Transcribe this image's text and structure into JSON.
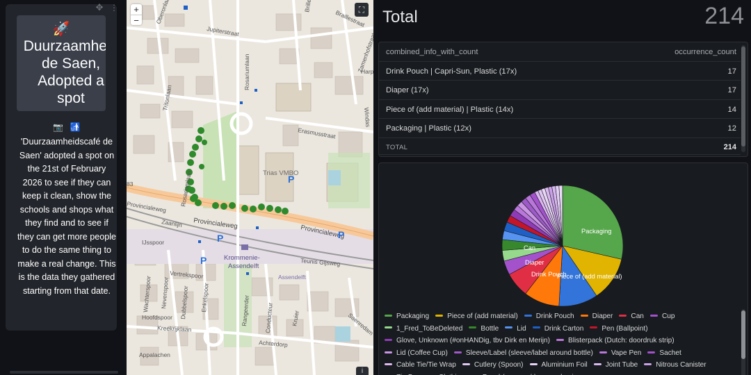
{
  "text_panel": {
    "rocket_emoji": "🚀",
    "title": "Duurzaamheid\nde Saen,\nAdopted a\nspot",
    "icons": [
      "📷",
      "🚮"
    ],
    "body": "'Duurzaamheidscafé de Saen' adopted a spot on the 21st of February 2026 to see if they can keep it clean, show the schools and shops what they find and to see if they can get more people to do the same thing to make a real change. This is the data they gathered starting from that date."
  },
  "map": {
    "zoom_in": "+",
    "zoom_out": "−",
    "fullscreen_icon": "⛶",
    "info_icon": "i",
    "labels": {
      "oberonlaan": "Oberonlaan",
      "jupiterstraat": "Jupiterstraat",
      "brillestraat": "Brillestraat",
      "brailestraat": "Braillestraat",
      "zamenhofstraat": "Zamenhofstraat",
      "tritonlaan": "Tritonlaan",
      "rosariumlaan": "Rosariumlaan",
      "windas": "Windas",
      "harp": "Harp",
      "erasmusstraat": "Erasmusstraat",
      "trias": "Trias VMBO",
      "provincialeweg1": "Provincialeweg",
      "provincialeweg2": "Provincialeweg",
      "provincialeweg3": "Provincialeweg",
      "zaanlijn": "Zaanlijn",
      "ijsspoor": "IJsspoor",
      "vertrekspoor": "Vertrekspoor",
      "krommenie": "Krommenie-",
      "assendelft": "Assendelft",
      "teunis": "Teunis Gijsweg",
      "assendelft2": "Assendelft",
      "wachterspoor": "Wachterspoor",
      "nevenspoor": "Nevenspoor",
      "dubbelspoor": "Dubbelspoor",
      "enkelspoor": "Enkelspoor",
      "hoofdspoor": "Hoofdspoor",
      "kreekrijklaan": "Kreekrijklaan",
      "rangeerder": "Rangeerder",
      "conducteur": "Conducteur",
      "kruier": "Kruier",
      "saenredam": "Saenredam",
      "achterdorp": "Achterdorp",
      "appalachen": "Appalachen",
      "num83": "83",
      "parking": "P"
    }
  },
  "total": {
    "label": "Total",
    "value": "214"
  },
  "table": {
    "columns": [
      "combined_info_with_count",
      "occurrence_count"
    ],
    "rows": [
      {
        "name": "Drink Pouch | Capri-Sun, Plastic (17x)",
        "count": "17"
      },
      {
        "name": "Diaper (17x)",
        "count": "17"
      },
      {
        "name": "Piece of (add material) | Plastic (14x)",
        "count": "14"
      },
      {
        "name": "Packaging | Plastic (12x)",
        "count": "12"
      }
    ],
    "footer_label": "TOTAL",
    "footer_value": "214"
  },
  "pie": {
    "slice_labels": {
      "packaging": "Packaging",
      "piece": "Piece of (add material)",
      "drink": "Drink Pouch",
      "diaper": "Diaper",
      "can": "Can"
    },
    "legend": [
      {
        "label": "Packaging",
        "color": "#56a64b"
      },
      {
        "label": "Piece of (add material)",
        "color": "#e0b400"
      },
      {
        "label": "Drink Pouch",
        "color": "#3274d9"
      },
      {
        "label": "Diaper",
        "color": "#ff780a"
      },
      {
        "label": "Can",
        "color": "#e02f44"
      },
      {
        "label": "Cup",
        "color": "#a352cc"
      },
      {
        "label": "1_Fred_ToBeDeleted",
        "color": "#96d98d"
      },
      {
        "label": "Bottle",
        "color": "#37872d"
      },
      {
        "label": "Lid",
        "color": "#5794f2"
      },
      {
        "label": "Drink Carton",
        "color": "#1f60c4"
      },
      {
        "label": "Pen (Ballpoint)",
        "color": "#c4162a"
      },
      {
        "label": "Glove, Unknown (#onHANDig, tbv Dirk en Merijn)",
        "color": "#8f3bb8"
      },
      {
        "label": "Blisterpack (Dutch: doordruk strip)",
        "color": "#b877d9"
      },
      {
        "label": "Lid (Coffee Cup)",
        "color": "#ca95e5"
      },
      {
        "label": "Sleeve/Label (sleeve/label around bottle)",
        "color": "#9e5ac8"
      },
      {
        "label": "Vape Pen",
        "color": "#b877d9"
      },
      {
        "label": "Sachet",
        "color": "#a352cc"
      },
      {
        "label": "Cable Tie/Tie Wrap",
        "color": "#dcb7f0"
      },
      {
        "label": "Cutlery (Spoon)",
        "color": "#e0c6f2"
      },
      {
        "label": "Aluminium Foil",
        "color": "#e8d5f5"
      },
      {
        "label": "Joint Tube",
        "color": "#d9b8ee"
      },
      {
        "label": "Nitrous Canister",
        "color": "#c9a0e6"
      },
      {
        "label": "Zip Bag",
        "color": "#d7b6ef"
      },
      {
        "label": "Clothing",
        "color": "#e4cff5"
      },
      {
        "label": "Pouch/wrapper/drugspackaging",
        "color": "#ead9f7"
      }
    ]
  }
}
